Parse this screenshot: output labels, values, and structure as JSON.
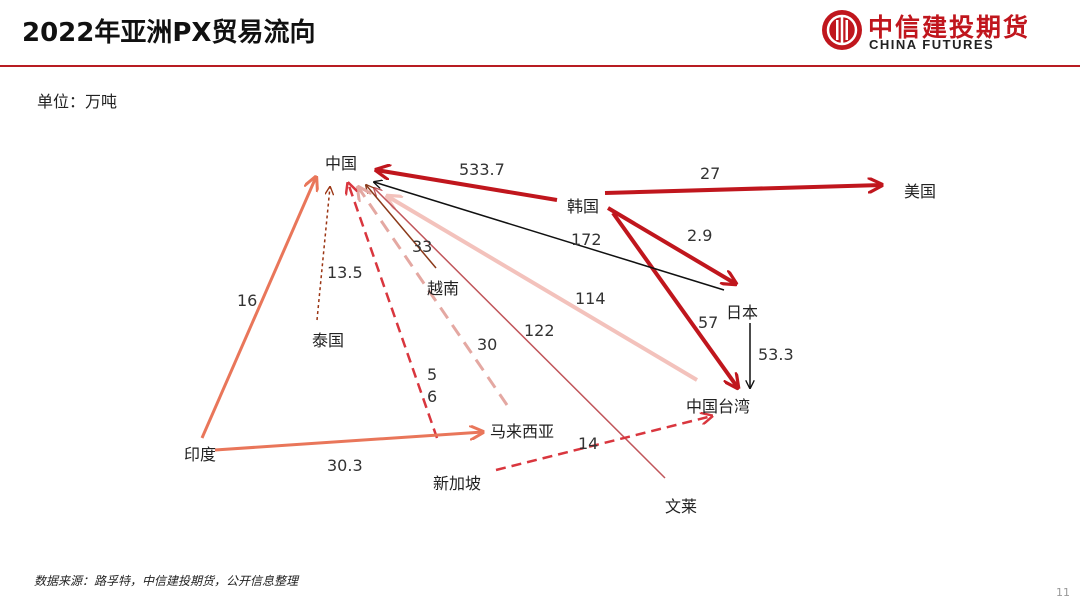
{
  "header": {
    "title": "2022年亚洲PX贸易流向",
    "brand_cn": "中信建投期货",
    "brand_en": "CHINA FUTURES"
  },
  "unit_label": "单位：万吨",
  "nodes": {
    "china": "中国",
    "korea": "韩国",
    "usa": "美国",
    "japan": "日本",
    "taiwan": "中国台湾",
    "vietnam": "越南",
    "thailand": "泰国",
    "india": "印度",
    "malaysia": "马来西亚",
    "singapore": "新加坡",
    "brunei": "文莱"
  },
  "flows": [
    {
      "from": "韩国",
      "to": "中国",
      "value": "533.7",
      "color": "#c0161d",
      "style": "solid"
    },
    {
      "from": "韩国",
      "to": "美国",
      "value": "27",
      "color": "#c0161d",
      "style": "solid"
    },
    {
      "from": "韩国",
      "to": "日本",
      "value": "2.9",
      "color": "#c0161d",
      "style": "solid"
    },
    {
      "from": "韩国",
      "to": "中国台湾",
      "value": "57",
      "color": "#c0161d",
      "style": "solid"
    },
    {
      "from": "日本",
      "to": "中国",
      "value": "172",
      "color": "#111111",
      "style": "solid"
    },
    {
      "from": "日本",
      "to": "中国台湾",
      "value": "53.3",
      "color": "#111111",
      "style": "solid"
    },
    {
      "from": "中国台湾",
      "to": "中国",
      "value": "114",
      "color": "#f3c2bc",
      "style": "solid"
    },
    {
      "from": "文莱",
      "to": "中国",
      "value": "122",
      "color": "#c0555a",
      "style": "solid"
    },
    {
      "from": "越南",
      "to": "中国",
      "value": "33",
      "color": "#8b3a1a",
      "style": "solid"
    },
    {
      "from": "泰国",
      "to": "中国",
      "value": "13.5",
      "color": "#9a3412",
      "style": "dotted"
    },
    {
      "from": "印度",
      "to": "中国",
      "value": "16",
      "color": "#e9765a",
      "style": "solid"
    },
    {
      "from": "马来西亚",
      "to": "中国",
      "value": "30",
      "color": "#e4a8a2",
      "style": "dashed"
    },
    {
      "from": "新加坡",
      "to": "中国",
      "value": "5",
      "color": "#d9363e",
      "style": "dashed"
    },
    {
      "from": "新加坡",
      "to": "中国",
      "value": "6",
      "color": "#d9363e",
      "style": "dashed"
    },
    {
      "from": "印度",
      "to": "马来西亚",
      "value": "30.3",
      "color": "#e9765a",
      "style": "solid"
    },
    {
      "from": "新加坡",
      "to": "中国台湾",
      "value": "14",
      "color": "#d9363e",
      "style": "dashed"
    }
  ],
  "footer": {
    "source": "数据来源：路孚特，中信建投期货，公开信息整理",
    "page": "11"
  }
}
